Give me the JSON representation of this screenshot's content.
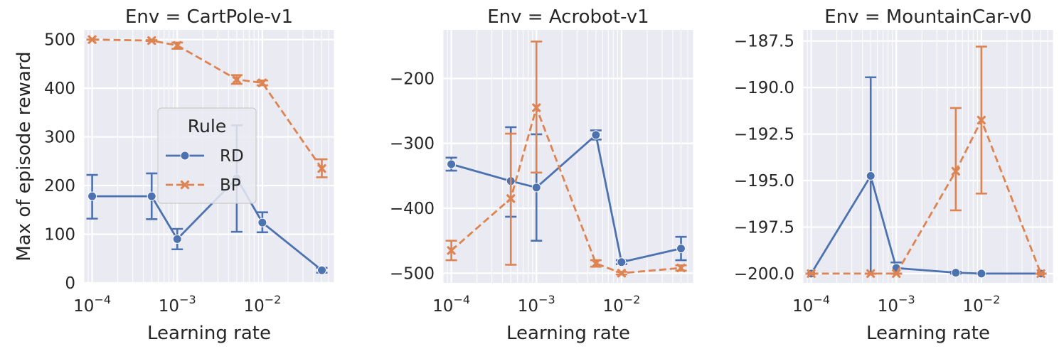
{
  "figure": {
    "legend": {
      "title": "Rule",
      "entries": [
        "RD",
        "BP"
      ],
      "position": "inside-first-panel-center-right"
    }
  },
  "colors": {
    "RD": "#4c72b0",
    "BP": "#dd8452",
    "background": "#eaeaf2",
    "grid": "#ffffff"
  },
  "chart_data": [
    {
      "type": "line",
      "title": "Env = CartPole-v1",
      "xlabel": "Learning rate",
      "ylabel": "Max of episode reward",
      "xscale": "log",
      "xlim": [
        8e-05,
        0.07
      ],
      "ylim": [
        0,
        520
      ],
      "xticks": [
        0.0001,
        0.001,
        0.01
      ],
      "xtick_labels": [
        [
          "10",
          "−4"
        ],
        [
          "10",
          "−3"
        ],
        [
          "10",
          "−2"
        ]
      ],
      "yticks": [
        0,
        100,
        200,
        300,
        400,
        500
      ],
      "ytick_labels": [
        "0",
        "100",
        "200",
        "300",
        "400",
        "500"
      ],
      "grid": true,
      "series": [
        {
          "name": "RD",
          "marker": "circle",
          "linestyle": "solid",
          "x": [
            0.0001,
            0.0005,
            0.001,
            0.005,
            0.01,
            0.05
          ],
          "y": [
            178,
            178,
            90,
            215,
            124,
            26
          ],
          "err_low": [
            132,
            131,
            69,
            105,
            104,
            21
          ],
          "err_high": [
            222,
            225,
            111,
            324,
            145,
            31
          ]
        },
        {
          "name": "BP",
          "marker": "x",
          "linestyle": "dashed",
          "x": [
            0.0001,
            0.0005,
            0.001,
            0.005,
            0.01,
            0.05
          ],
          "y": [
            500,
            498,
            488,
            418,
            411,
            235
          ],
          "err_low": [
            500,
            497,
            481,
            409,
            406,
            217
          ],
          "err_high": [
            500,
            499,
            494,
            427,
            416,
            254
          ]
        }
      ]
    },
    {
      "type": "line",
      "title": "Env = Acrobot-v1",
      "xlabel": "Learning rate",
      "ylabel": "",
      "xscale": "log",
      "xlim": [
        8e-05,
        0.07
      ],
      "ylim": [
        -515,
        -125
      ],
      "xticks": [
        0.0001,
        0.001,
        0.01
      ],
      "xtick_labels": [
        [
          "10",
          "−4"
        ],
        [
          "10",
          "−3"
        ],
        [
          "10",
          "−2"
        ]
      ],
      "yticks": [
        -500,
        -400,
        -300,
        -200
      ],
      "ytick_labels": [
        "−500",
        "−400",
        "−300",
        "−200"
      ],
      "grid": true,
      "series": [
        {
          "name": "RD",
          "marker": "circle",
          "linestyle": "solid",
          "x": [
            0.0001,
            0.0005,
            0.001,
            0.005,
            0.01,
            0.05
          ],
          "y": [
            -332,
            -358,
            -368,
            -287,
            -483,
            -462
          ],
          "err_low": [
            -342,
            -413,
            -450,
            -294,
            -486,
            -480
          ],
          "err_high": [
            -322,
            -275,
            -286,
            -280,
            -480,
            -444
          ]
        },
        {
          "name": "BP",
          "marker": "x",
          "linestyle": "dashed",
          "x": [
            0.0001,
            0.0005,
            0.001,
            0.005,
            0.01,
            0.05
          ],
          "y": [
            -465,
            -385,
            -245,
            -485,
            -500,
            -492
          ],
          "err_low": [
            -480,
            -487,
            -345,
            -490,
            -502,
            -496
          ],
          "err_high": [
            -450,
            -285,
            -143,
            -480,
            -498,
            -488
          ]
        }
      ]
    },
    {
      "type": "line",
      "title": "Env = MountainCar-v0",
      "xlabel": "Learning rate",
      "ylabel": "",
      "xscale": "log",
      "xlim": [
        8e-05,
        0.07
      ],
      "ylim": [
        -200.5,
        -186.9
      ],
      "xticks": [
        0.0001,
        0.001,
        0.01
      ],
      "xtick_labels": [
        [
          "10",
          "−4"
        ],
        [
          "10",
          "−3"
        ],
        [
          "10",
          "−2"
        ]
      ],
      "yticks": [
        -200.0,
        -197.5,
        -195.0,
        -192.5,
        -190.0,
        -187.5
      ],
      "ytick_labels": [
        "−200.0",
        "−197.5",
        "−195.0",
        "−192.5",
        "−190.0",
        "−187.5"
      ],
      "grid": true,
      "series": [
        {
          "name": "RD",
          "marker": "circle",
          "linestyle": "solid",
          "x": [
            0.0001,
            0.0005,
            0.001,
            0.005,
            0.01,
            0.05
          ],
          "y": [
            -200.0,
            -194.75,
            -199.7,
            -199.95,
            -200.0,
            -200.0
          ],
          "err_low": [
            -200.0,
            -200.0,
            -200.0,
            -200.0,
            -200.0,
            -200.0
          ],
          "err_high": [
            -200.0,
            -189.45,
            -199.4,
            -199.9,
            -200.0,
            -200.0
          ]
        },
        {
          "name": "BP",
          "marker": "x",
          "linestyle": "dashed",
          "x": [
            0.0001,
            0.0005,
            0.001,
            0.005,
            0.01,
            0.05
          ],
          "y": [
            -200.0,
            -200.0,
            -200.0,
            -194.5,
            -191.75,
            -200.0
          ],
          "err_low": [
            -200.0,
            -200.0,
            -200.0,
            -196.6,
            -195.7,
            -200.0
          ],
          "err_high": [
            -200.0,
            -200.0,
            -200.0,
            -191.1,
            -187.8,
            -200.0
          ]
        }
      ]
    }
  ]
}
